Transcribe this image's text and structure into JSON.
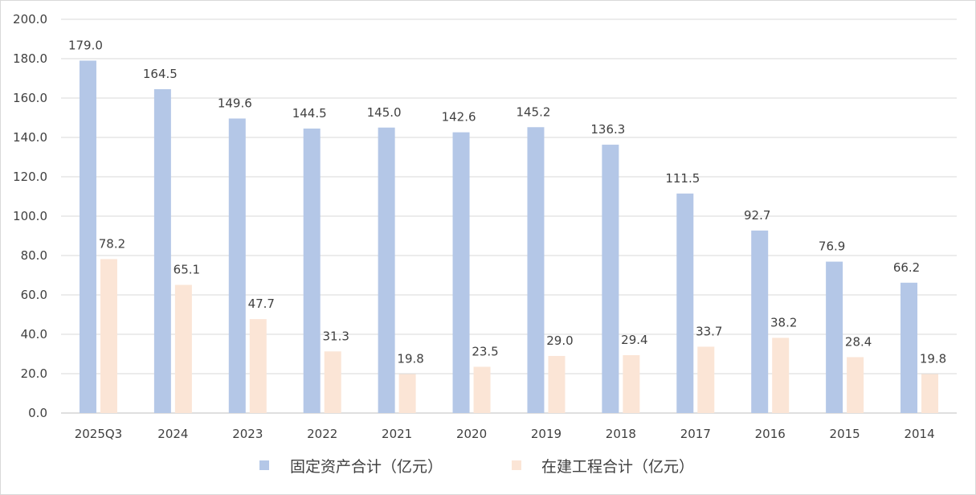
{
  "chart_data": {
    "type": "bar",
    "categories": [
      "2025Q3",
      "2024",
      "2023",
      "2022",
      "2021",
      "2020",
      "2019",
      "2018",
      "2017",
      "2016",
      "2015",
      "2014"
    ],
    "series": [
      {
        "name": "固定资产合计（亿元）",
        "color": "#b4c7e7",
        "values": [
          179.0,
          164.5,
          149.6,
          144.5,
          145.0,
          142.6,
          145.2,
          136.3,
          111.5,
          92.7,
          76.9,
          66.2
        ],
        "labels": [
          "179.0",
          "164.5",
          "149.6",
          "144.5",
          "145.0",
          "142.6",
          "145.2",
          "136.3",
          "111.5",
          "92.7",
          "76.9",
          "66.2"
        ]
      },
      {
        "name": "在建工程合计（亿元）",
        "color": "#fbe5d6",
        "values": [
          78.2,
          65.1,
          47.7,
          31.3,
          19.8,
          23.5,
          29.0,
          29.4,
          33.7,
          38.2,
          28.4,
          19.8
        ],
        "labels": [
          "78.2",
          "65.1",
          "47.7",
          "31.3",
          "19.8",
          "23.5",
          "29.0",
          "29.4",
          "33.7",
          "38.2",
          "28.4",
          "19.8"
        ]
      }
    ],
    "ylim": [
      0,
      200
    ],
    "yticks": [
      "0.0",
      "20.0",
      "40.0",
      "60.0",
      "80.0",
      "100.0",
      "120.0",
      "140.0",
      "160.0",
      "180.0",
      "200.0"
    ],
    "grid": true,
    "legend_position": "bottom"
  }
}
